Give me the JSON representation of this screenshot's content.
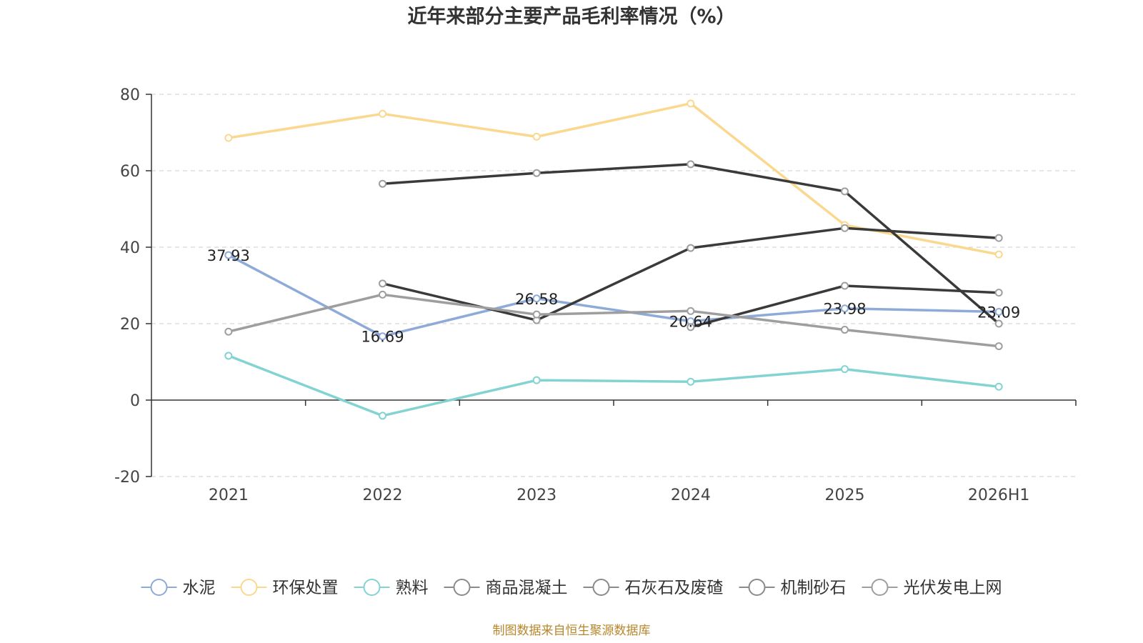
{
  "chart_data": {
    "type": "line",
    "title": "近年来部分主要产品毛利率情况（%）",
    "categories": [
      "2021",
      "2022",
      "2023",
      "2024",
      "2025",
      "2026H1"
    ],
    "ylim": [
      -20,
      80
    ],
    "yticks": [
      "-20",
      "0",
      "20",
      "40",
      "60",
      "80"
    ],
    "grid": true,
    "legend_position": "bottom",
    "series": [
      {
        "name": "水泥",
        "color": "#8eaad8",
        "values": [
          37.93,
          16.69,
          26.58,
          20.64,
          23.98,
          23.09
        ],
        "labels": [
          "37.93",
          "16.69",
          "26.58",
          "20.64",
          "23.98",
          "23.09"
        ]
      },
      {
        "name": "环保处置",
        "color": "#fbd88f",
        "values": [
          68.6,
          74.9,
          68.9,
          77.6,
          45.8,
          38.1
        ]
      },
      {
        "name": "熟料",
        "color": "#84d3d3",
        "values": [
          11.6,
          -4.1,
          5.2,
          4.8,
          8.1,
          3.5
        ]
      },
      {
        "name": "商品混凝土",
        "color": "#3a3a3a",
        "values": [
          null,
          56.6,
          59.4,
          61.7,
          54.6,
          20.0
        ]
      },
      {
        "name": "石灰石及废碴",
        "color": "#3a3a3a",
        "values": [
          null,
          30.5,
          20.9,
          39.8,
          45.0,
          42.4
        ]
      },
      {
        "name": "机制砂石",
        "color": "#3a3a3a",
        "values": [
          null,
          null,
          null,
          19.1,
          29.9,
          28.1
        ]
      },
      {
        "name": "光伏发电上网",
        "color": "#9e9e9e",
        "values": [
          17.9,
          27.6,
          22.4,
          23.3,
          18.4,
          14.1
        ]
      }
    ],
    "source": "制图数据来自恒生聚源数据库"
  }
}
